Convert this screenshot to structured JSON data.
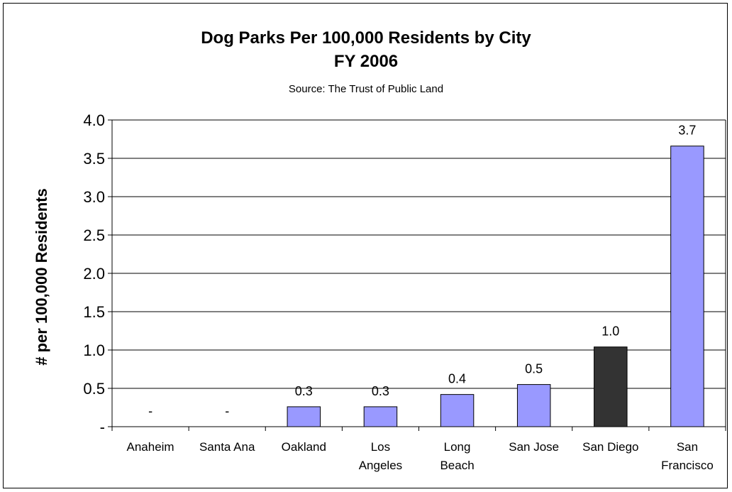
{
  "chart_data": {
    "type": "bar",
    "title": "Dog Parks Per 100,000 Residents by City",
    "subtitle": "FY 2006",
    "source": "Source:  The Trust of Public Land",
    "xlabel": "",
    "ylabel": "# per 100,000 Residents",
    "ylim": [
      0,
      4.0
    ],
    "yticks": [
      "-",
      "0.5",
      "1.0",
      "1.5",
      "2.0",
      "2.5",
      "3.0",
      "3.5",
      "4.0"
    ],
    "grid": true,
    "legend": "none",
    "categories": [
      [
        "Anaheim"
      ],
      [
        "Santa Ana"
      ],
      [
        "Oakland"
      ],
      [
        "Los",
        "Angeles"
      ],
      [
        "Long",
        "Beach"
      ],
      [
        "San Jose"
      ],
      [
        "San Diego"
      ],
      [
        "San",
        "Francisco"
      ]
    ],
    "values": [
      0,
      0,
      0.26,
      0.26,
      0.42,
      0.55,
      1.04,
      3.66
    ],
    "labels": [
      "-",
      "-",
      "0.3",
      "0.3",
      "0.4",
      "0.5",
      "1.0",
      "3.7"
    ],
    "bar_colors": [
      "#9999ff",
      "#9999ff",
      "#9999ff",
      "#9999ff",
      "#9999ff",
      "#9999ff",
      "#333333",
      "#9999ff"
    ]
  }
}
